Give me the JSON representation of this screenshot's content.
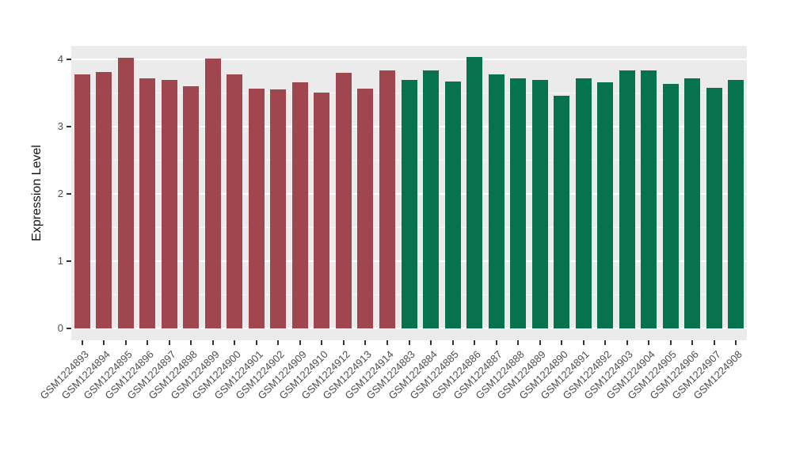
{
  "chart_data": {
    "type": "bar",
    "title": "",
    "xlabel": "",
    "ylabel": "Expression Level",
    "ylim": [
      0,
      4.2
    ],
    "yticks": [
      0,
      1,
      2,
      3,
      4
    ],
    "grid": "major and minor horizontal white gridlines on gray panel",
    "legend_position": "none",
    "panel_bg": "#EBEBEB",
    "gridline_color": "#FFFFFF",
    "tick_label_color": "#4D4D4D",
    "groups": [
      {
        "name": "group-1",
        "color": "#A0464E",
        "categories": [
          "GSM1224893",
          "GSM1224894",
          "GSM1224895",
          "GSM1224896",
          "GSM1224897",
          "GSM1224898",
          "GSM1224899",
          "GSM1224900",
          "GSM1224901",
          "GSM1224902",
          "GSM1224909",
          "GSM1224910",
          "GSM1224912",
          "GSM1224913",
          "GSM1224914"
        ],
        "values": [
          3.78,
          3.81,
          4.02,
          3.72,
          3.7,
          3.6,
          4.01,
          3.78,
          3.56,
          3.55,
          3.66,
          3.51,
          3.8,
          3.56,
          3.84
        ]
      },
      {
        "name": "group-2",
        "color": "#06724E",
        "categories": [
          "GSM1224883",
          "GSM1224884",
          "GSM1224885",
          "GSM1224886",
          "GSM1224887",
          "GSM1224888",
          "GSM1224889",
          "GSM1224890",
          "GSM1224891",
          "GSM1224892",
          "GSM1224903",
          "GSM1224904",
          "GSM1224905",
          "GSM1224906",
          "GSM1224907",
          "GSM1224908"
        ],
        "values": [
          3.7,
          3.83,
          3.67,
          4.04,
          3.78,
          3.72,
          3.7,
          3.46,
          3.72,
          3.66,
          3.84,
          3.84,
          3.63,
          3.72,
          3.58,
          3.7
        ]
      }
    ]
  }
}
